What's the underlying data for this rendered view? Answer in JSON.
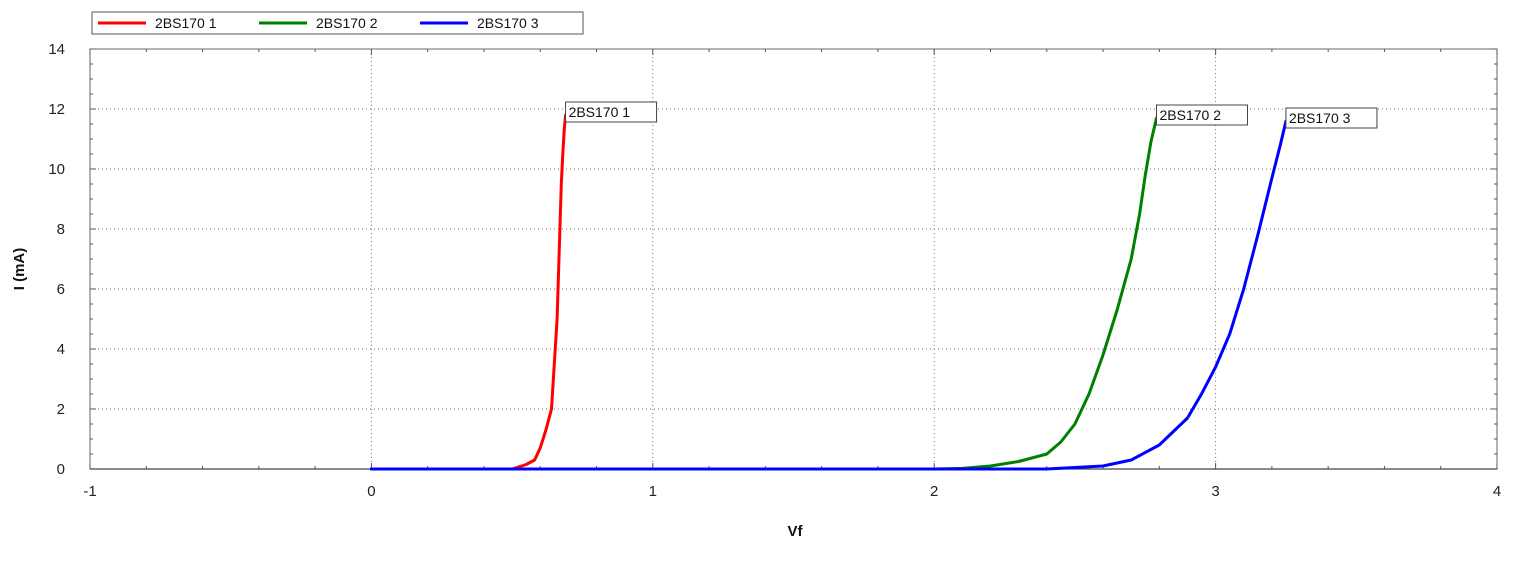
{
  "chart_data": {
    "type": "line",
    "xlabel": "Vf",
    "ylabel": "I (mA)",
    "xlim": [
      -1,
      4
    ],
    "ylim": [
      0,
      14
    ],
    "xticks": [
      -1,
      0,
      1,
      2,
      3,
      4
    ],
    "yticks": [
      0,
      2,
      4,
      6,
      8,
      10,
      12,
      14
    ],
    "grid": true,
    "legend_position": "top-left",
    "series": [
      {
        "name": "2BS170 1",
        "color": "#ff0000",
        "x": [
          0.0,
          0.5,
          0.55,
          0.58,
          0.6,
          0.62,
          0.64,
          0.65,
          0.66,
          0.665,
          0.67,
          0.675,
          0.68,
          0.685,
          0.69
        ],
        "y": [
          0.0,
          0.0,
          0.15,
          0.3,
          0.7,
          1.3,
          2.0,
          3.5,
          5.0,
          6.5,
          8.0,
          9.5,
          10.5,
          11.3,
          11.8
        ],
        "label": "2BS170 1"
      },
      {
        "name": "2BS170 2",
        "color": "#008000",
        "x": [
          0.0,
          2.0,
          2.1,
          2.2,
          2.3,
          2.4,
          2.45,
          2.5,
          2.55,
          2.6,
          2.65,
          2.7,
          2.73,
          2.75,
          2.77,
          2.79
        ],
        "y": [
          0.0,
          0.0,
          0.02,
          0.1,
          0.25,
          0.5,
          0.9,
          1.5,
          2.5,
          3.8,
          5.3,
          7.0,
          8.5,
          9.8,
          10.9,
          11.7
        ],
        "label": "2BS170 2"
      },
      {
        "name": "2BS170 3",
        "color": "#0000ff",
        "x": [
          0.0,
          2.4,
          2.6,
          2.7,
          2.8,
          2.9,
          2.95,
          3.0,
          3.05,
          3.1,
          3.15,
          3.2,
          3.23,
          3.25
        ],
        "y": [
          0.0,
          0.0,
          0.1,
          0.3,
          0.8,
          1.7,
          2.5,
          3.4,
          4.5,
          6.0,
          7.8,
          9.7,
          10.8,
          11.6
        ],
        "label": "2BS170 3"
      }
    ]
  }
}
